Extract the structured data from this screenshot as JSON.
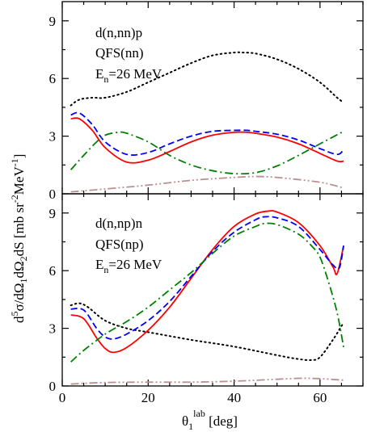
{
  "chart_data": [
    {
      "type": "line",
      "annotations": [
        "d(n,nn)p",
        "QFS(nn)",
        "E",
        "n",
        "=26 MeV"
      ],
      "xlim": [
        0,
        70
      ],
      "ylim": [
        0,
        10
      ],
      "xticks": [
        0,
        20,
        40,
        60
      ],
      "xtick_labels": [
        "",
        "",
        "",
        ""
      ],
      "yticks": [
        0,
        3,
        6,
        9
      ],
      "ytick_labels": [
        "0",
        "3",
        "6",
        "9"
      ],
      "grid": false,
      "series": [
        {
          "style": "dotted",
          "color": "#000000",
          "x": [
            2,
            4,
            7,
            10,
            15,
            20,
            25,
            30,
            35,
            40,
            42,
            45,
            50,
            55,
            60,
            64,
            65.5
          ],
          "y": [
            4.6,
            4.9,
            5.0,
            5.0,
            5.3,
            5.8,
            6.3,
            6.8,
            7.2,
            7.35,
            7.35,
            7.3,
            7.0,
            6.5,
            5.8,
            5.0,
            4.75
          ]
        },
        {
          "style": "solid",
          "color": "#ff0000",
          "x": [
            2,
            4,
            7,
            10,
            15,
            20,
            25,
            30,
            35,
            40,
            43,
            45,
            50,
            55,
            60,
            64,
            65.5
          ],
          "y": [
            3.9,
            3.9,
            3.3,
            2.4,
            1.65,
            1.75,
            2.2,
            2.7,
            3.05,
            3.2,
            3.2,
            3.15,
            2.95,
            2.6,
            2.1,
            1.7,
            1.7
          ]
        },
        {
          "style": "dashed",
          "color": "#0000ff",
          "x": [
            2,
            4,
            7,
            10,
            15,
            20,
            25,
            30,
            35,
            40,
            43,
            45,
            50,
            55,
            60,
            64,
            65.5
          ],
          "y": [
            4.1,
            4.2,
            3.6,
            2.7,
            2.05,
            2.15,
            2.6,
            3.0,
            3.25,
            3.3,
            3.3,
            3.25,
            3.1,
            2.8,
            2.35,
            2.05,
            2.3
          ]
        },
        {
          "style": "dash-dot",
          "color": "#008000",
          "x": [
            2,
            5,
            8,
            10,
            13,
            15,
            20,
            25,
            30,
            35,
            40,
            45,
            50,
            55,
            60,
            65.5
          ],
          "y": [
            1.25,
            2.0,
            2.7,
            3.05,
            3.2,
            3.15,
            2.7,
            2.0,
            1.5,
            1.2,
            1.05,
            1.1,
            1.45,
            2.0,
            2.6,
            3.25
          ]
        },
        {
          "style": "dash-dot-dot",
          "color": "#bc8f8f",
          "x": [
            2,
            10,
            20,
            30,
            40,
            45,
            50,
            60,
            65.5
          ],
          "y": [
            0.1,
            0.25,
            0.45,
            0.7,
            0.85,
            0.9,
            0.85,
            0.6,
            0.3
          ]
        }
      ]
    },
    {
      "type": "line",
      "annotations": [
        "d(n,np)n",
        "QFS(np)",
        "E",
        "n",
        "=26 MeV"
      ],
      "xlim": [
        0,
        70
      ],
      "ylim": [
        0,
        10
      ],
      "xticks": [
        0,
        20,
        40,
        60
      ],
      "xtick_labels": [
        "0",
        "20",
        "40",
        "60"
      ],
      "yticks": [
        0,
        3,
        6,
        9
      ],
      "ytick_labels": [
        "0",
        "3",
        "6",
        "9"
      ],
      "xlabel_parts": [
        "θ",
        "1",
        "lab",
        " [deg]"
      ],
      "grid": false,
      "series": [
        {
          "style": "dotted",
          "color": "#000000",
          "x": [
            2,
            4,
            6,
            10,
            15,
            20,
            30,
            40,
            50,
            55,
            58,
            60,
            63,
            65.5
          ],
          "y": [
            4.2,
            4.3,
            4.1,
            3.4,
            3.0,
            2.8,
            2.4,
            2.05,
            1.6,
            1.4,
            1.35,
            1.5,
            2.4,
            3.3
          ]
        },
        {
          "style": "solid",
          "color": "#ff0000",
          "x": [
            2,
            5,
            8,
            10,
            12,
            15,
            20,
            25,
            30,
            35,
            40,
            45,
            48,
            50,
            55,
            60,
            63,
            64,
            65.5
          ],
          "y": [
            3.7,
            3.5,
            2.5,
            1.95,
            1.75,
            2.0,
            2.9,
            4.1,
            5.6,
            7.1,
            8.3,
            8.95,
            9.1,
            9.05,
            8.5,
            7.3,
            6.2,
            5.85,
            7.3
          ]
        },
        {
          "style": "dashed",
          "color": "#0000ff",
          "x": [
            2,
            5,
            8,
            10,
            12,
            15,
            20,
            25,
            30,
            35,
            40,
            45,
            47,
            50,
            55,
            60,
            63,
            64.5,
            65.5
          ],
          "y": [
            4.0,
            3.95,
            3.0,
            2.55,
            2.45,
            2.7,
            3.4,
            4.4,
            5.7,
            7.0,
            8.0,
            8.65,
            8.8,
            8.75,
            8.3,
            7.1,
            6.3,
            6.15,
            7.3
          ]
        },
        {
          "style": "dash-dot",
          "color": "#008000",
          "x": [
            2,
            5,
            10,
            15,
            20,
            25,
            30,
            35,
            40,
            45,
            47,
            50,
            55,
            58,
            60,
            62,
            64,
            65.5
          ],
          "y": [
            1.25,
            1.85,
            2.7,
            3.35,
            4.1,
            5.0,
            5.9,
            6.9,
            7.8,
            8.3,
            8.45,
            8.4,
            7.9,
            7.3,
            6.7,
            5.4,
            3.8,
            2.0
          ]
        },
        {
          "style": "dash-dot-dot",
          "color": "#bc8f8f",
          "x": [
            2,
            10,
            20,
            30,
            40,
            50,
            55,
            60,
            65.5
          ],
          "y": [
            0.1,
            0.18,
            0.2,
            0.2,
            0.25,
            0.35,
            0.4,
            0.38,
            0.3
          ]
        }
      ]
    }
  ],
  "ylabel": {
    "parts": [
      "d",
      "5",
      "σ/dΩ",
      "1",
      "dΩ",
      "2",
      "dS [mb sr",
      "-2",
      "MeV",
      "-1",
      "]"
    ]
  }
}
